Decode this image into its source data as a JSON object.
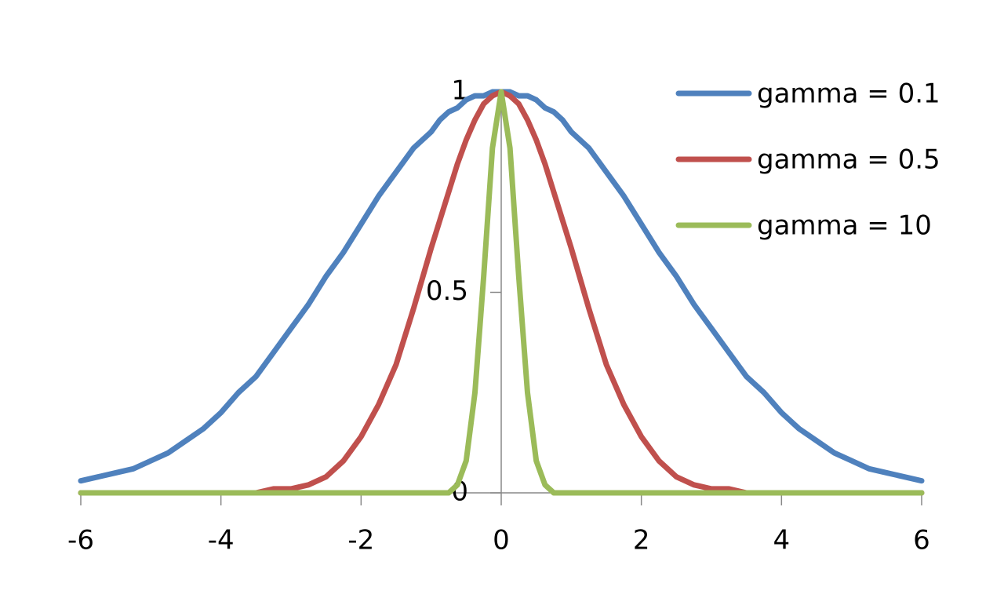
{
  "chart_data": {
    "type": "line",
    "x": [
      -6,
      -5.75,
      -5.5,
      -5.25,
      -5,
      -4.75,
      -4.5,
      -4.25,
      -4,
      -3.75,
      -3.5,
      -3.25,
      -3,
      -2.75,
      -2.5,
      -2.25,
      -2,
      -1.75,
      -1.5,
      -1.25,
      -1,
      -0.875,
      -0.75,
      -0.625,
      -0.5,
      -0.375,
      -0.25,
      -0.125,
      0,
      0.125,
      0.25,
      0.375,
      0.5,
      0.625,
      0.75,
      0.875,
      1,
      1.25,
      1.5,
      1.75,
      2,
      2.25,
      2.5,
      2.75,
      3,
      3.25,
      3.5,
      3.75,
      4,
      4.25,
      4.5,
      4.75,
      5,
      5.25,
      5.5,
      5.75,
      6
    ],
    "series": [
      {
        "name": "gamma = 0.1",
        "color": "#4f81bd",
        "values": [
          0.03,
          0.04,
          0.05,
          0.06,
          0.08,
          0.1,
          0.13,
          0.16,
          0.2,
          0.25,
          0.29,
          0.35,
          0.41,
          0.47,
          0.54,
          0.6,
          0.67,
          0.74,
          0.8,
          0.86,
          0.9,
          0.93,
          0.95,
          0.96,
          0.98,
          0.99,
          0.99,
          1,
          1,
          1,
          0.99,
          0.99,
          0.98,
          0.96,
          0.95,
          0.93,
          0.9,
          0.86,
          0.8,
          0.74,
          0.67,
          0.6,
          0.54,
          0.47,
          0.41,
          0.35,
          0.29,
          0.25,
          0.2,
          0.16,
          0.13,
          0.1,
          0.08,
          0.06,
          0.05,
          0.04,
          0.03
        ]
      },
      {
        "name": "gamma = 0.5",
        "color": "#c0504d",
        "values": [
          0,
          0,
          0,
          0,
          0,
          0,
          0,
          0,
          0,
          0,
          0,
          0.01,
          0.01,
          0.02,
          0.04,
          0.08,
          0.14,
          0.22,
          0.32,
          0.46,
          0.61,
          0.68,
          0.75,
          0.82,
          0.88,
          0.93,
          0.97,
          0.99,
          1,
          0.99,
          0.97,
          0.93,
          0.88,
          0.82,
          0.75,
          0.68,
          0.61,
          0.46,
          0.32,
          0.22,
          0.14,
          0.08,
          0.04,
          0.02,
          0.01,
          0.01,
          0,
          0,
          0,
          0,
          0,
          0,
          0,
          0,
          0,
          0,
          0
        ]
      },
      {
        "name": "gamma = 10",
        "color": "#9bbb59",
        "values": [
          0,
          0,
          0,
          0,
          0,
          0,
          0,
          0,
          0,
          0,
          0,
          0,
          0,
          0,
          0,
          0,
          0,
          0,
          0,
          0,
          0,
          0,
          0,
          0.02,
          0.08,
          0.25,
          0.54,
          0.86,
          1,
          0.86,
          0.54,
          0.25,
          0.08,
          0.02,
          0,
          0,
          0,
          0,
          0,
          0,
          0,
          0,
          0,
          0,
          0,
          0,
          0,
          0,
          0,
          0,
          0,
          0,
          0,
          0,
          0,
          0,
          0
        ]
      }
    ],
    "xlim": [
      -6,
      6
    ],
    "xticks": [
      -6,
      -4,
      -2,
      0,
      2,
      4,
      6
    ],
    "ylim": [
      0,
      1
    ],
    "yticks": [
      0,
      0.5,
      1
    ],
    "legend": "top-right"
  }
}
